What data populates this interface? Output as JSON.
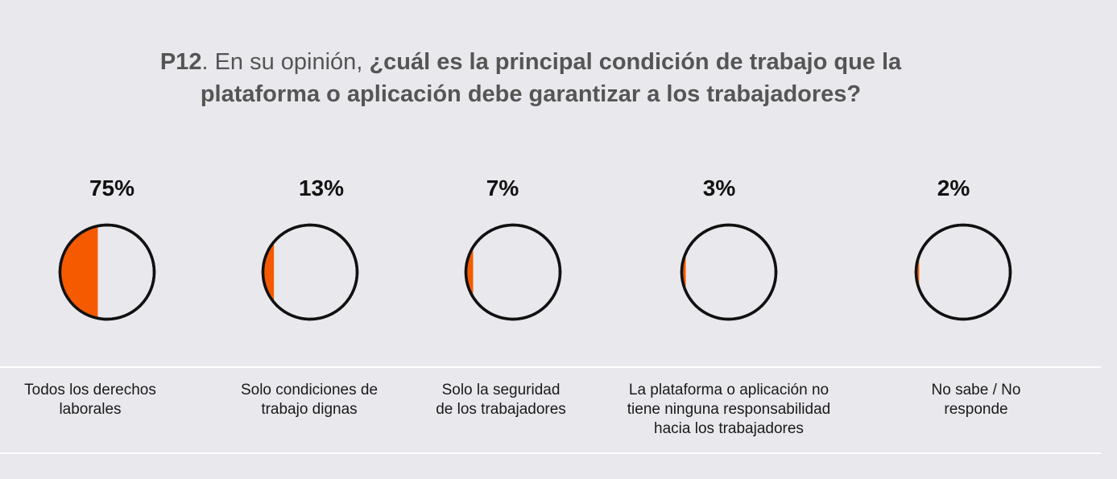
{
  "title": {
    "code": "P12",
    "lead": ". En su opinión, ",
    "bold_line1": "¿cuál es la principal condición de trabajo que la",
    "bold_line2": "plataforma o aplicación debe garantizar a los trabajadores?"
  },
  "chart_data": {
    "type": "pie",
    "title": "P12. En su opinión, ¿cuál es la principal condición de trabajo que la plataforma o aplicación debe garantizar a los trabajadores?",
    "categories": [
      "Todos los derechos laborales",
      "Solo condiciones de trabajo dignas",
      "Solo la seguridad de los trabajadores",
      "La plataforma o aplicación no tiene ninguna responsabilidad hacia los trabajadores",
      "No sabe / No responde"
    ],
    "values": [
      75,
      13,
      7,
      3,
      2
    ],
    "value_labels": [
      "75%",
      "13%",
      "7%",
      "3%",
      "2%"
    ],
    "label_lines": [
      [
        "Todos los derechos",
        "laborales"
      ],
      [
        "Solo condiciones de",
        "trabajo dignas"
      ],
      [
        "Solo la seguridad",
        "de los trabajadores"
      ],
      [
        "La plataforma o aplicación no",
        "tiene ninguna responsabilidad",
        "hacia los trabajadores"
      ],
      [
        "No sabe / No",
        "responde"
      ]
    ],
    "colors": {
      "fill": "#f55a00",
      "outline": "#111111",
      "background": "#e9e8ec"
    }
  }
}
